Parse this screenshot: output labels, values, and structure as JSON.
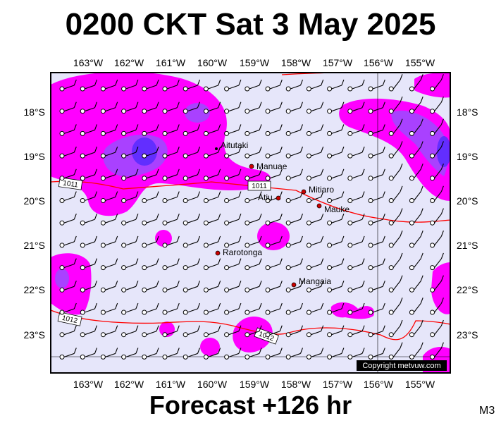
{
  "header": {
    "title": "0200 CKT Sat 3 May 2025"
  },
  "footer": {
    "forecast": "Forecast +126 hr",
    "model": "M3"
  },
  "axes": {
    "lon_labels": [
      "163°W",
      "162°W",
      "161°W",
      "160°W",
      "159°W",
      "158°W",
      "157°W",
      "156°W",
      "155°W"
    ],
    "lat_labels": [
      "18°S",
      "19°S",
      "20°S",
      "21°S",
      "22°S",
      "23°S"
    ]
  },
  "places": [
    {
      "name": "Aitutaki",
      "dot": false
    },
    {
      "name": "Manuae",
      "dot": true
    },
    {
      "name": "Mitiaro",
      "dot": true
    },
    {
      "name": "Atiu",
      "dot": true
    },
    {
      "name": "Mauke",
      "dot": true
    },
    {
      "name": "Rarotonga",
      "dot": true
    },
    {
      "name": "Mangaia",
      "dot": true
    }
  ],
  "isobars": [
    "1011",
    "1011",
    "1012",
    "1012"
  ],
  "credit": "Copyright metvuw.com",
  "colors": {
    "ocean": "#e6e6fa",
    "rain_light": "#ff00ff",
    "rain_heavy": "#7b3cff",
    "isobar": "#ff0000"
  }
}
